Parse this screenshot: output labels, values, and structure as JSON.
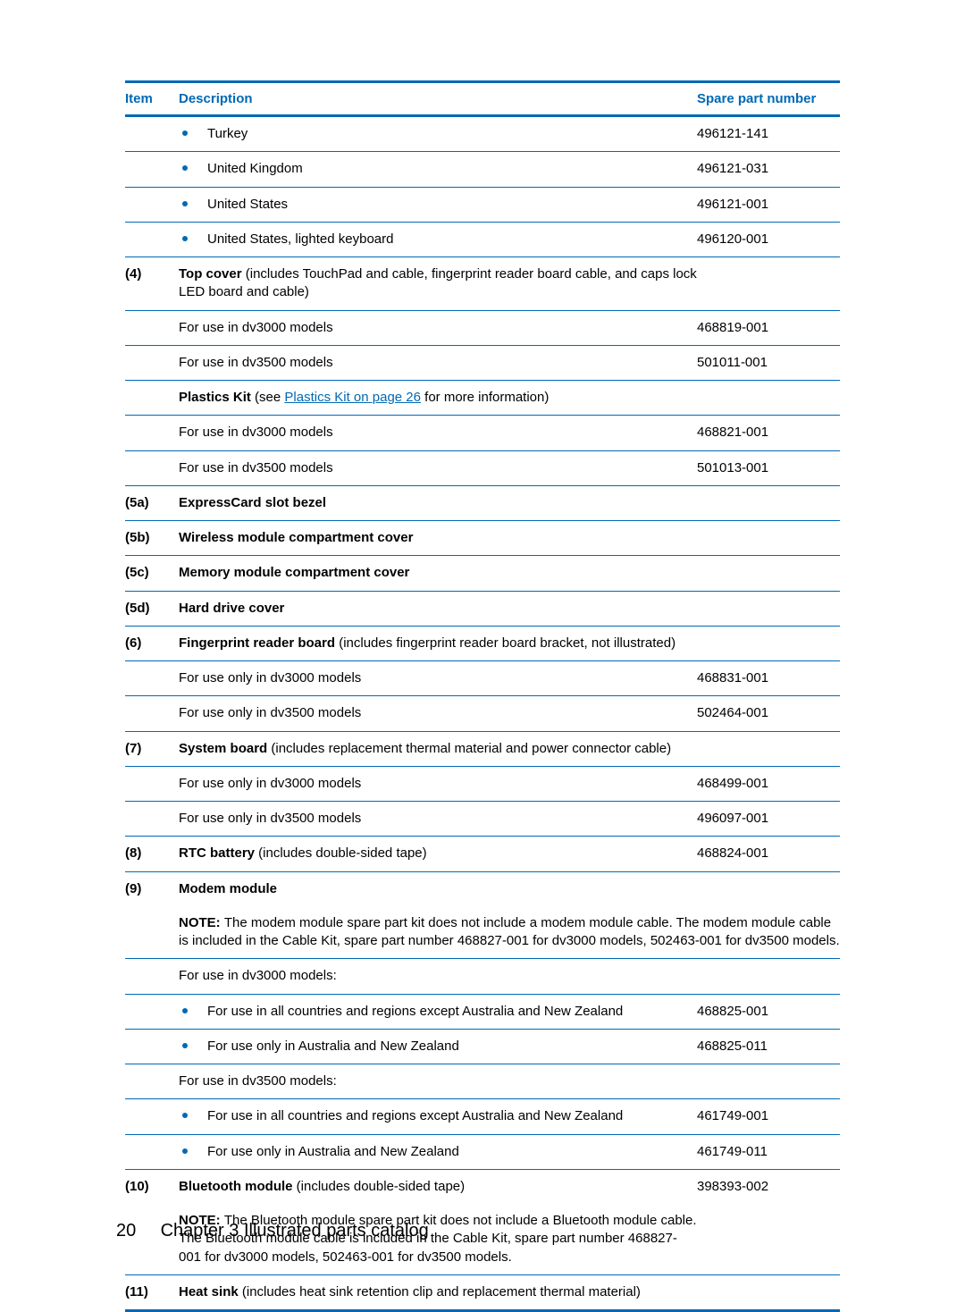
{
  "header": {
    "col1": "Item",
    "col2": "Description",
    "col3": "Spare part number"
  },
  "rows": [
    {
      "item": "",
      "desc_bullet": true,
      "desc": "Turkey",
      "part": "496121-141"
    },
    {
      "item": "",
      "desc_bullet": true,
      "desc": "United Kingdom",
      "part": "496121-031"
    },
    {
      "item": "",
      "desc_bullet": true,
      "desc": "United States",
      "part": "496121-001"
    },
    {
      "item": "",
      "desc_bullet": true,
      "desc": "United States, lighted keyboard",
      "part": "496120-001"
    },
    {
      "item": "(4)",
      "desc_bold": "Top cover",
      "desc_rest": " (includes TouchPad and cable, fingerprint reader board cable, and caps lock LED board and cable)",
      "part": ""
    },
    {
      "item": "",
      "desc": "For use in dv3000 models",
      "part": "468819-001"
    },
    {
      "item": "",
      "desc": "For use in dv3500 models",
      "part": "501011-001"
    },
    {
      "item": "",
      "desc_bold": "Plastics Kit",
      "desc_rest": " (see ",
      "link_text": "Plastics Kit on page 26",
      "desc_after": " for more information)",
      "part": ""
    },
    {
      "item": "",
      "desc": "For use in dv3000 models",
      "part": "468821-001"
    },
    {
      "item": "",
      "desc": "For use in dv3500 models",
      "part": "501013-001"
    },
    {
      "item": "(5a)",
      "desc_bold": "ExpressCard slot bezel",
      "part": ""
    },
    {
      "item": "(5b)",
      "desc_bold": "Wireless module compartment cover",
      "part": ""
    },
    {
      "item": "(5c)",
      "desc_bold": "Memory module compartment cover",
      "part": ""
    },
    {
      "item": "(5d)",
      "desc_bold": "Hard drive cover",
      "part": ""
    },
    {
      "item": "(6)",
      "desc_bold": "Fingerprint reader board",
      "desc_rest": " (includes fingerprint reader board bracket, not illustrated)",
      "part": ""
    },
    {
      "item": "",
      "desc": "For use only in dv3000 models",
      "part": "468831-001"
    },
    {
      "item": "",
      "desc": "For use only in dv3500 models",
      "part": "502464-001"
    },
    {
      "item": "(7)",
      "desc_bold": "System board",
      "desc_rest": " (includes replacement thermal material and power connector cable)",
      "part": ""
    },
    {
      "item": "",
      "desc": "For use only in dv3000 models",
      "part": "468499-001"
    },
    {
      "item": "",
      "desc": "For use only in dv3500 models",
      "part": "496097-001"
    },
    {
      "item": "(8)",
      "desc_bold": "RTC battery",
      "desc_rest": " (includes double-sided tape)",
      "part": "468824-001"
    },
    {
      "item": "(9)",
      "desc_bold": "Modem module",
      "part": "",
      "no_border": true
    },
    {
      "item": "",
      "note_label": "NOTE:",
      "note_text": "The modem module spare part kit does not include a modem module cable. The modem module cable is included in the Cable Kit, spare part number 468827-001 for dv3000 models, 502463-001 for dv3500 models.",
      "part": "",
      "colspan": true
    },
    {
      "item": "",
      "desc": "For use in dv3000 models:",
      "part": ""
    },
    {
      "item": "",
      "desc_bullet": true,
      "desc": "For use in all countries and regions except Australia and New Zealand",
      "part": "468825-001"
    },
    {
      "item": "",
      "desc_bullet": true,
      "desc": "For use only in Australia and New Zealand",
      "part": "468825-011"
    },
    {
      "item": "",
      "desc": "For use in dv3500 models:",
      "part": ""
    },
    {
      "item": "",
      "desc_bullet": true,
      "desc": "For use in all countries and regions except Australia and New Zealand",
      "part": "461749-001"
    },
    {
      "item": "",
      "desc_bullet": true,
      "desc": "For use only in Australia and New Zealand",
      "part": "461749-011"
    },
    {
      "item": "(10)",
      "desc_bold": "Bluetooth module",
      "desc_rest": " (includes double-sided tape)",
      "part": "398393-002",
      "no_border": true
    },
    {
      "item": "",
      "note_label": "NOTE:",
      "note_text": "The Bluetooth module spare part kit does not include a Bluetooth module cable. The Bluetooth module cable is included in the Cable Kit, spare part number 468827-001 for dv3000 models, 502463-001 for dv3500 models.",
      "part": "",
      "short_note": true
    },
    {
      "item": "(11)",
      "desc_bold": "Heat sink",
      "desc_rest": " (includes heat sink retention clip and replacement thermal material)",
      "part": "",
      "last": true
    }
  ],
  "footer": {
    "page_number": "20",
    "chapter": "Chapter 3   Illustrated parts catalog"
  }
}
